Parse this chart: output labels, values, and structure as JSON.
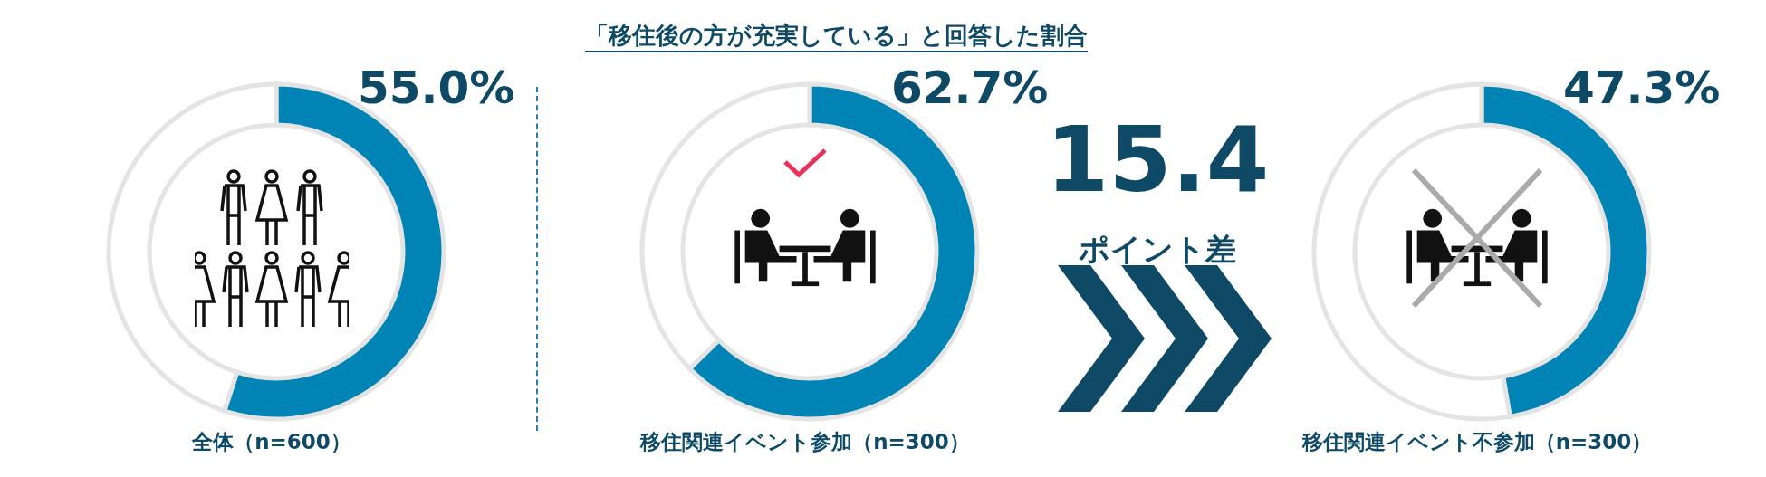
{
  "chart_data": [
    {
      "type": "other",
      "title": "「移住後の方が充実している」と回答した割合"
    },
    {
      "type": "donut",
      "title": "全体（n=600）",
      "categories": [
        null,
        null
      ],
      "values": [
        55.0,
        45.0
      ],
      "colors": [
        "#0083b5",
        "#ffffff"
      ],
      "value_labels": [
        "55.0%",
        null
      ]
    },
    {
      "type": "donut",
      "title": "移住関連イベント参加（n=300）",
      "categories": [
        null,
        null
      ],
      "values": [
        62.7,
        37.3
      ],
      "colors": [
        "#0083b5",
        "#ffffff"
      ],
      "value_labels": [
        "62.7%",
        null
      ]
    },
    {
      "type": "other",
      "annotations": [
        "15.4",
        "ポイント差"
      ]
    },
    {
      "type": "donut",
      "title": "移住関連イベント不参加（n=300）",
      "categories": [
        null,
        null
      ],
      "values": [
        47.3,
        52.7
      ],
      "colors": [
        "#0083b5",
        "#ffffff"
      ],
      "value_labels": [
        "47.3%",
        null
      ]
    }
  ]
}
